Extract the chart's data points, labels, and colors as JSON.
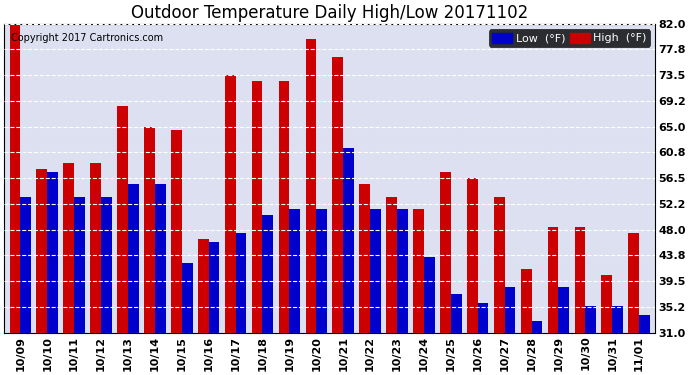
{
  "title": "Outdoor Temperature Daily High/Low 20171102",
  "copyright": "Copyright 2017 Cartronics.com",
  "legend_low": "Low  (°F)",
  "legend_high": "High  (°F)",
  "categories": [
    "10/09",
    "10/10",
    "10/11",
    "10/12",
    "10/13",
    "10/14",
    "10/15",
    "10/16",
    "10/17",
    "10/18",
    "10/19",
    "10/20",
    "10/21",
    "10/22",
    "10/23",
    "10/24",
    "10/25",
    "10/26",
    "10/27",
    "10/28",
    "10/29",
    "10/30",
    "10/31",
    "11/01"
  ],
  "low_values": [
    53.5,
    57.5,
    53.5,
    53.5,
    55.5,
    55.5,
    42.5,
    46.0,
    47.5,
    50.5,
    51.5,
    51.5,
    61.5,
    51.5,
    51.5,
    43.5,
    37.5,
    36.0,
    38.5,
    33.0,
    38.5,
    35.5,
    35.5,
    34.0
  ],
  "high_values": [
    82.0,
    58.0,
    59.0,
    59.0,
    68.5,
    65.0,
    64.5,
    46.5,
    73.5,
    72.5,
    72.5,
    79.5,
    76.5,
    55.5,
    53.5,
    51.5,
    57.5,
    56.5,
    53.5,
    41.5,
    48.5,
    48.5,
    40.5,
    47.5
  ],
  "low_color": "#0000cc",
  "high_color": "#cc0000",
  "bg_color": "#ffffff",
  "plot_bg_color": "#dde0f0",
  "grid_color": "#ffffff",
  "ylim": [
    31.0,
    82.0
  ],
  "ybaseline": 31.0,
  "yticks": [
    31.0,
    35.2,
    39.5,
    43.8,
    48.0,
    52.2,
    56.5,
    60.8,
    65.0,
    69.2,
    73.5,
    77.8,
    82.0
  ],
  "title_fontsize": 12,
  "axis_fontsize": 8,
  "copyright_fontsize": 7
}
